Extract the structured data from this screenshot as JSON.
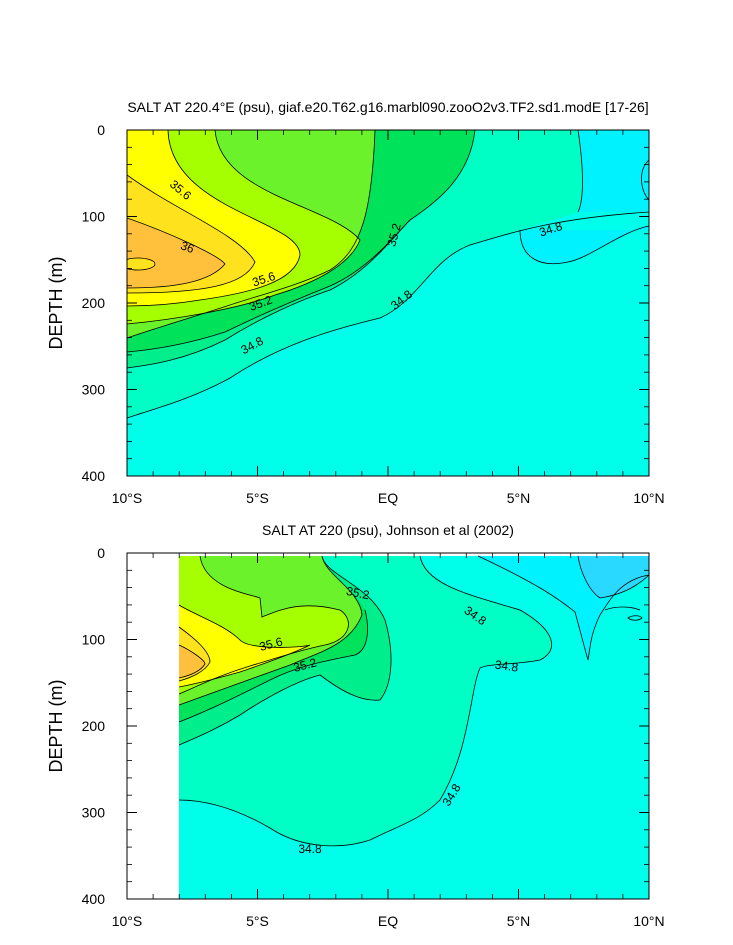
{
  "chart_data": [
    {
      "type": "contour",
      "title": "SALT AT 220.4°E (psu), giaf.e20.T62.g16.marbl090.zooO2v3.TF2.sd1.modE [17-26]",
      "ylabel": "DEPTH (m)",
      "xlabel": "",
      "x_ticks": [
        "10°S",
        "5°S",
        "EQ",
        "5°N",
        "10°N"
      ],
      "x_tick_values": [
        -10,
        -5,
        0,
        5,
        10
      ],
      "y_ticks": [
        "0",
        "100",
        "200",
        "300",
        "400"
      ],
      "y_tick_values": [
        0,
        100,
        200,
        300,
        400
      ],
      "xlim": [
        -10,
        10
      ],
      "ylim": [
        0,
        400
      ],
      "y_reversed": true,
      "contour_labels": [
        "35.6",
        "36",
        "35.6",
        "35.2",
        "34.8",
        "35.2",
        "34.8",
        "34.8"
      ]
    },
    {
      "type": "contour",
      "title": "SALT AT 220 (psu), Johnson et al (2002)",
      "ylabel": "DEPTH (m)",
      "xlabel": "",
      "x_ticks": [
        "10°S",
        "5°S",
        "EQ",
        "5°N",
        "10°N"
      ],
      "x_tick_values": [
        -10,
        -5,
        0,
        5,
        10
      ],
      "y_ticks": [
        "0",
        "100",
        "200",
        "300",
        "400"
      ],
      "y_tick_values": [
        0,
        100,
        200,
        300,
        400
      ],
      "xlim": [
        -10,
        10
      ],
      "ylim": [
        0,
        400
      ],
      "y_reversed": true,
      "data_start_x": -8,
      "contour_labels": [
        "35.2",
        "34.8",
        "35.6",
        "35.2",
        "34.8",
        "34.8",
        "34.8"
      ]
    }
  ],
  "fill_colors": {
    "level_36_up": "#ffc13b",
    "level_35_8": "#ffe21e",
    "level_35_6": "#ffff00",
    "level_35_4": "#a5ff00",
    "level_35_2": "#6cf22b",
    "level_35_0": "#00e25a",
    "level_34_9": "#00ee8c",
    "level_34_8": "#00ffc4",
    "level_34_6": "#00ffea",
    "level_34_4": "#00f2ff",
    "level_34_2": "#2ad9ff"
  }
}
